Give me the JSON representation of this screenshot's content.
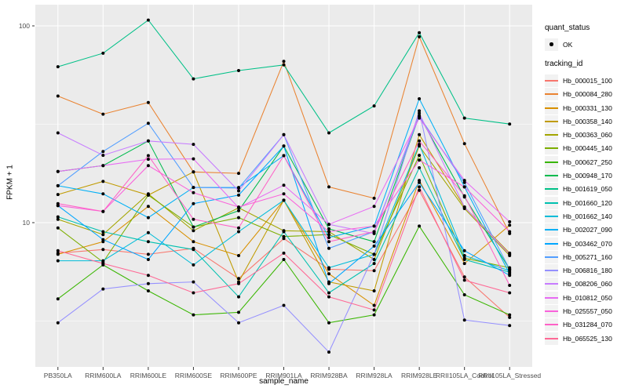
{
  "figure": {
    "panel_bg": "#EBEBEB",
    "grid_color": "#FFFFFF",
    "tick_color": "#333333",
    "tick_text_color": "#4D4D4D",
    "point_color": "#000000",
    "key_bg": "#F2F2F2"
  },
  "legend": {
    "quant_status_title": "quant_status",
    "ok_label": "OK",
    "tracking_title": "tracking_id"
  },
  "chart_data": {
    "type": "line",
    "title": "",
    "xlabel": "sample_name",
    "ylabel": "FPKM + 1",
    "y_scale": "log10",
    "y_ticks": [
      100,
      10
    ],
    "y_minor_ticks": [
      31.62,
      3.162
    ],
    "ylim": [
      2.0,
      128
    ],
    "grid": true,
    "legend_position": "right",
    "categories": [
      "PB350LA",
      "RRIM600LA",
      "RRIM600LE",
      "RRIM600SE",
      "RRIM600PE",
      "RRIM901LA",
      "RRIM928BA",
      "RRIM928LA",
      "RRIM928LE",
      "RRII105LA_Control",
      "RRII105LA_Stressed"
    ],
    "series": [
      {
        "name": "Hb_000015_100",
        "color": "#F8766D",
        "values": [
          7.0,
          7.3,
          6.9,
          7.4,
          5.2,
          8.3,
          5.8,
          5.7,
          14.6,
          5.3,
          3.3
        ]
      },
      {
        "name": "Hb_000084_280",
        "color": "#EA8331",
        "values": [
          44,
          35.6,
          40.8,
          18.1,
          17.8,
          66,
          15.2,
          13.3,
          88,
          25.2,
          8.8
        ]
      },
      {
        "name": "Hb_000331_130",
        "color": "#D89000",
        "values": [
          6.9,
          8.0,
          12.1,
          8.0,
          6.8,
          13.0,
          5.5,
          3.8,
          16.4,
          6.2,
          9.7
        ]
      },
      {
        "name": "Hb_000358_140",
        "color": "#C09B00",
        "values": [
          13.9,
          16.2,
          13.8,
          18.1,
          5.0,
          13.0,
          5.0,
          4.5,
          28,
          12.0,
          7.0
        ]
      },
      {
        "name": "Hb_000363_060",
        "color": "#A3A500",
        "values": [
          10.4,
          8.7,
          14.0,
          9.1,
          11.9,
          9.1,
          9.0,
          6.5,
          24.5,
          11.8,
          6.8
        ]
      },
      {
        "name": "Hb_000445_140",
        "color": "#7CAE00",
        "values": [
          9.4,
          6.3,
          13.8,
          9.5,
          10.6,
          8.5,
          8.7,
          6.9,
          22.0,
          6.6,
          5.9
        ]
      },
      {
        "name": "Hb_000627_250",
        "color": "#39B600",
        "values": [
          4.1,
          6.1,
          4.5,
          3.4,
          3.5,
          6.5,
          3.1,
          3.4,
          9.6,
          4.3,
          3.4
        ]
      },
      {
        "name": "Hb_000948_170",
        "color": "#00BB4E",
        "values": [
          18.2,
          19.5,
          26.0,
          9.5,
          11.5,
          24.5,
          9.3,
          8.0,
          35.0,
          13.5,
          5.8
        ]
      },
      {
        "name": "Hb_001619_050",
        "color": "#00C087",
        "values": [
          62,
          72.6,
          107,
          53.8,
          59.3,
          63.3,
          28.6,
          39.2,
          92.3,
          34,
          31.7
        ]
      },
      {
        "name": "Hb_001660_120",
        "color": "#00C0AF",
        "values": [
          10.7,
          9.0,
          8.0,
          7.3,
          4.2,
          9.0,
          4.4,
          6.2,
          19.0,
          6.5,
          5.6
        ]
      },
      {
        "name": "Hb_001662_140",
        "color": "#00BCD8",
        "values": [
          6.4,
          6.4,
          8.9,
          6.1,
          9.0,
          13.0,
          5.9,
          6.9,
          25.0,
          6.8,
          5.7
        ]
      },
      {
        "name": "Hb_002027_090",
        "color": "#00B0F6",
        "values": [
          15.4,
          14.0,
          10.6,
          15.1,
          15.1,
          21.9,
          8.4,
          9.6,
          42.6,
          15.2,
          5.5
        ]
      },
      {
        "name": "Hb_003462_070",
        "color": "#00A6FF",
        "values": [
          12.2,
          8.2,
          6.5,
          12.5,
          13.8,
          24.5,
          4.9,
          7.6,
          16.0,
          7.2,
          5.4
        ]
      },
      {
        "name": "Hb_005271_160",
        "color": "#529EFF",
        "values": [
          15.4,
          23.0,
          32.0,
          15.1,
          15.0,
          28.0,
          7.4,
          9.0,
          34.7,
          16.0,
          5.8
        ]
      },
      {
        "name": "Hb_006816_180",
        "color": "#9590FF",
        "values": [
          3.1,
          4.6,
          4.9,
          5.0,
          3.1,
          3.8,
          2.2,
          6.9,
          37.0,
          3.2,
          3.0
        ]
      },
      {
        "name": "Hb_008206_060",
        "color": "#C77CFF",
        "values": [
          28.6,
          22.0,
          26.0,
          25.0,
          14.5,
          28.0,
          9.8,
          8.8,
          36.0,
          12.0,
          6.9
        ]
      },
      {
        "name": "Hb_010812_050",
        "color": "#E76BF3",
        "values": [
          18.2,
          19.5,
          21.0,
          21.1,
          11.9,
          15.5,
          9.8,
          12.1,
          34.0,
          16.4,
          10.1
        ]
      },
      {
        "name": "Hb_025557_050",
        "color": "#FA62DB",
        "values": [
          12.2,
          11.4,
          19.5,
          14.2,
          12.0,
          14.0,
          9.0,
          9.6,
          20.8,
          15.2,
          9.0
        ]
      },
      {
        "name": "Hb_031284_070",
        "color": "#FF61C7",
        "values": [
          12.5,
          11.4,
          21.9,
          10.4,
          9.4,
          21.9,
          8.0,
          9.0,
          26.0,
          13.7,
          4.8
        ]
      },
      {
        "name": "Hb_065525_130",
        "color": "#FF6895",
        "values": [
          7.2,
          6.2,
          5.4,
          4.4,
          4.9,
          7.0,
          4.2,
          3.6,
          15.2,
          5.1,
          4.4
        ]
      }
    ]
  }
}
